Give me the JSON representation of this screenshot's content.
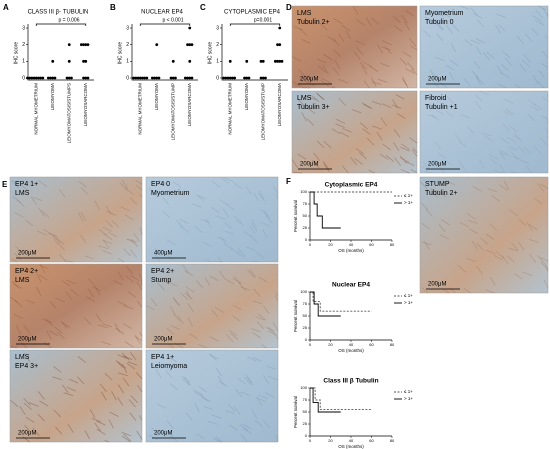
{
  "panel_letters": [
    "A",
    "B",
    "C",
    "D",
    "E",
    "F"
  ],
  "dot_plots": [
    {
      "title": "CLASS III β- TUBULIN",
      "p_value": "p = 0.006",
      "y_label": "IHC score",
      "yticks": [
        0,
        1,
        2,
        3
      ],
      "categories": [
        "NORMAL MYOMETRIUM",
        "LEIOMYOMA",
        "LEIOMYOMATOSIS/STUMPS",
        "LEIOMYOSARCOMA"
      ],
      "points": [
        [
          0,
          0,
          0,
          0,
          0,
          0,
          0,
          0
        ],
        [
          0,
          0,
          0,
          0,
          1
        ],
        [
          0,
          0,
          0,
          1,
          2
        ],
        [
          0,
          0,
          0,
          1,
          1,
          2,
          2,
          2,
          2
        ]
      ]
    },
    {
      "title": "NUCLEAR EP4",
      "p_value": "p < 0.001",
      "y_label": "IHC score",
      "yticks": [
        0,
        1,
        2,
        3
      ],
      "categories": [
        "NORMAL MYOMETRIUM",
        "LEIOMYOMA",
        "LEIOMYOMATOSIS/STUMP",
        "LEIOMYOSARCOMA"
      ],
      "points": [
        [
          0,
          0,
          0,
          0,
          0,
          0,
          0
        ],
        [
          0,
          0,
          0,
          0,
          2
        ],
        [
          0,
          0,
          0,
          1
        ],
        [
          0,
          0,
          0,
          0,
          1,
          2,
          2,
          2,
          3
        ]
      ]
    },
    {
      "title": "CYTOPLASMIC EP4",
      "p_value": "p=0.001",
      "y_label": "IHC score",
      "yticks": [
        0,
        1,
        2,
        3
      ],
      "categories": [
        "NORMAL MYOMETRIUM",
        "LEIOMYOMA",
        "LEIOMYOMATOSIS/STUMP",
        "LEIOMYOSARCOMA"
      ],
      "points": [
        [
          0,
          0,
          0,
          0,
          0,
          0,
          1
        ],
        [
          0,
          0,
          0,
          1
        ],
        [
          0,
          0,
          0,
          1,
          1
        ],
        [
          1,
          1,
          1,
          1,
          2,
          2,
          3
        ]
      ]
    }
  ],
  "images": [
    {
      "label": "LMS",
      "sublabel": "Tubulin 2+",
      "scale": "200μM"
    },
    {
      "label": "Myometrium",
      "sublabel": "Tubulin 0",
      "scale": "200μM"
    },
    {
      "label": "LMS",
      "sublabel": "Tubulin 3+",
      "scale": "200μM"
    },
    {
      "label": "Fibroid",
      "sublabel": "Tubulin +1",
      "scale": "200μM"
    },
    {
      "label": "STUMP",
      "sublabel": "Tubulin 2+",
      "scale": "200μM"
    },
    {
      "label": "EP4 1+",
      "sublabel": "LMS",
      "scale": "200μM"
    },
    {
      "label": "EP4 0",
      "sublabel": "Myometrium",
      "scale": "400μM"
    },
    {
      "label": "EP4 2+",
      "sublabel": "LMS",
      "scale": "200μM"
    },
    {
      "label": "EP4 2+",
      "sublabel": "Stump",
      "scale": "200μM"
    },
    {
      "label": "LMS",
      "sublabel": "EP4 3+",
      "scale": "200μM"
    },
    {
      "label": "EP4 1+",
      "sublabel": "Leiomyoma",
      "scale": "200μM"
    }
  ],
  "survival": {
    "y_label": "Percent survival",
    "x_label": "OS (months)",
    "xticks": [
      0,
      20,
      40,
      60,
      80
    ],
    "yticks": [
      0,
      25,
      50,
      75,
      100
    ],
    "plots": [
      {
        "title": "Cytoplasmic EP4",
        "curves": [
          {
            "name": "≤ 1+",
            "x": [
              0,
              80
            ],
            "y": [
              100,
              100
            ]
          },
          {
            "name": "> 1+",
            "x": [
              0,
              4,
              4,
              7,
              7,
              12,
              12,
              30
            ],
            "y": [
              100,
              100,
              75,
              75,
              50,
              50,
              25,
              25
            ]
          }
        ]
      },
      {
        "title": "Nuclear EP4",
        "curves": [
          {
            "name": "≤ 1+",
            "x": [
              0,
              3,
              3,
              10,
              10,
              60
            ],
            "y": [
              100,
              100,
              80,
              80,
              60,
              60
            ]
          },
          {
            "name": "> 1+",
            "x": [
              0,
              4,
              4,
              8,
              8,
              30
            ],
            "y": [
              100,
              100,
              75,
              75,
              50,
              50
            ]
          }
        ]
      },
      {
        "title": "Class III β Tubulin",
        "curves": [
          {
            "name": "≤ 1+",
            "x": [
              0,
              5,
              5,
              10,
              10,
              60
            ],
            "y": [
              100,
              100,
              75,
              75,
              55,
              55
            ]
          },
          {
            "name": "> 1+",
            "x": [
              0,
              3,
              3,
              8,
              8,
              30
            ],
            "y": [
              100,
              100,
              70,
              70,
              50,
              50
            ]
          }
        ]
      }
    ]
  }
}
